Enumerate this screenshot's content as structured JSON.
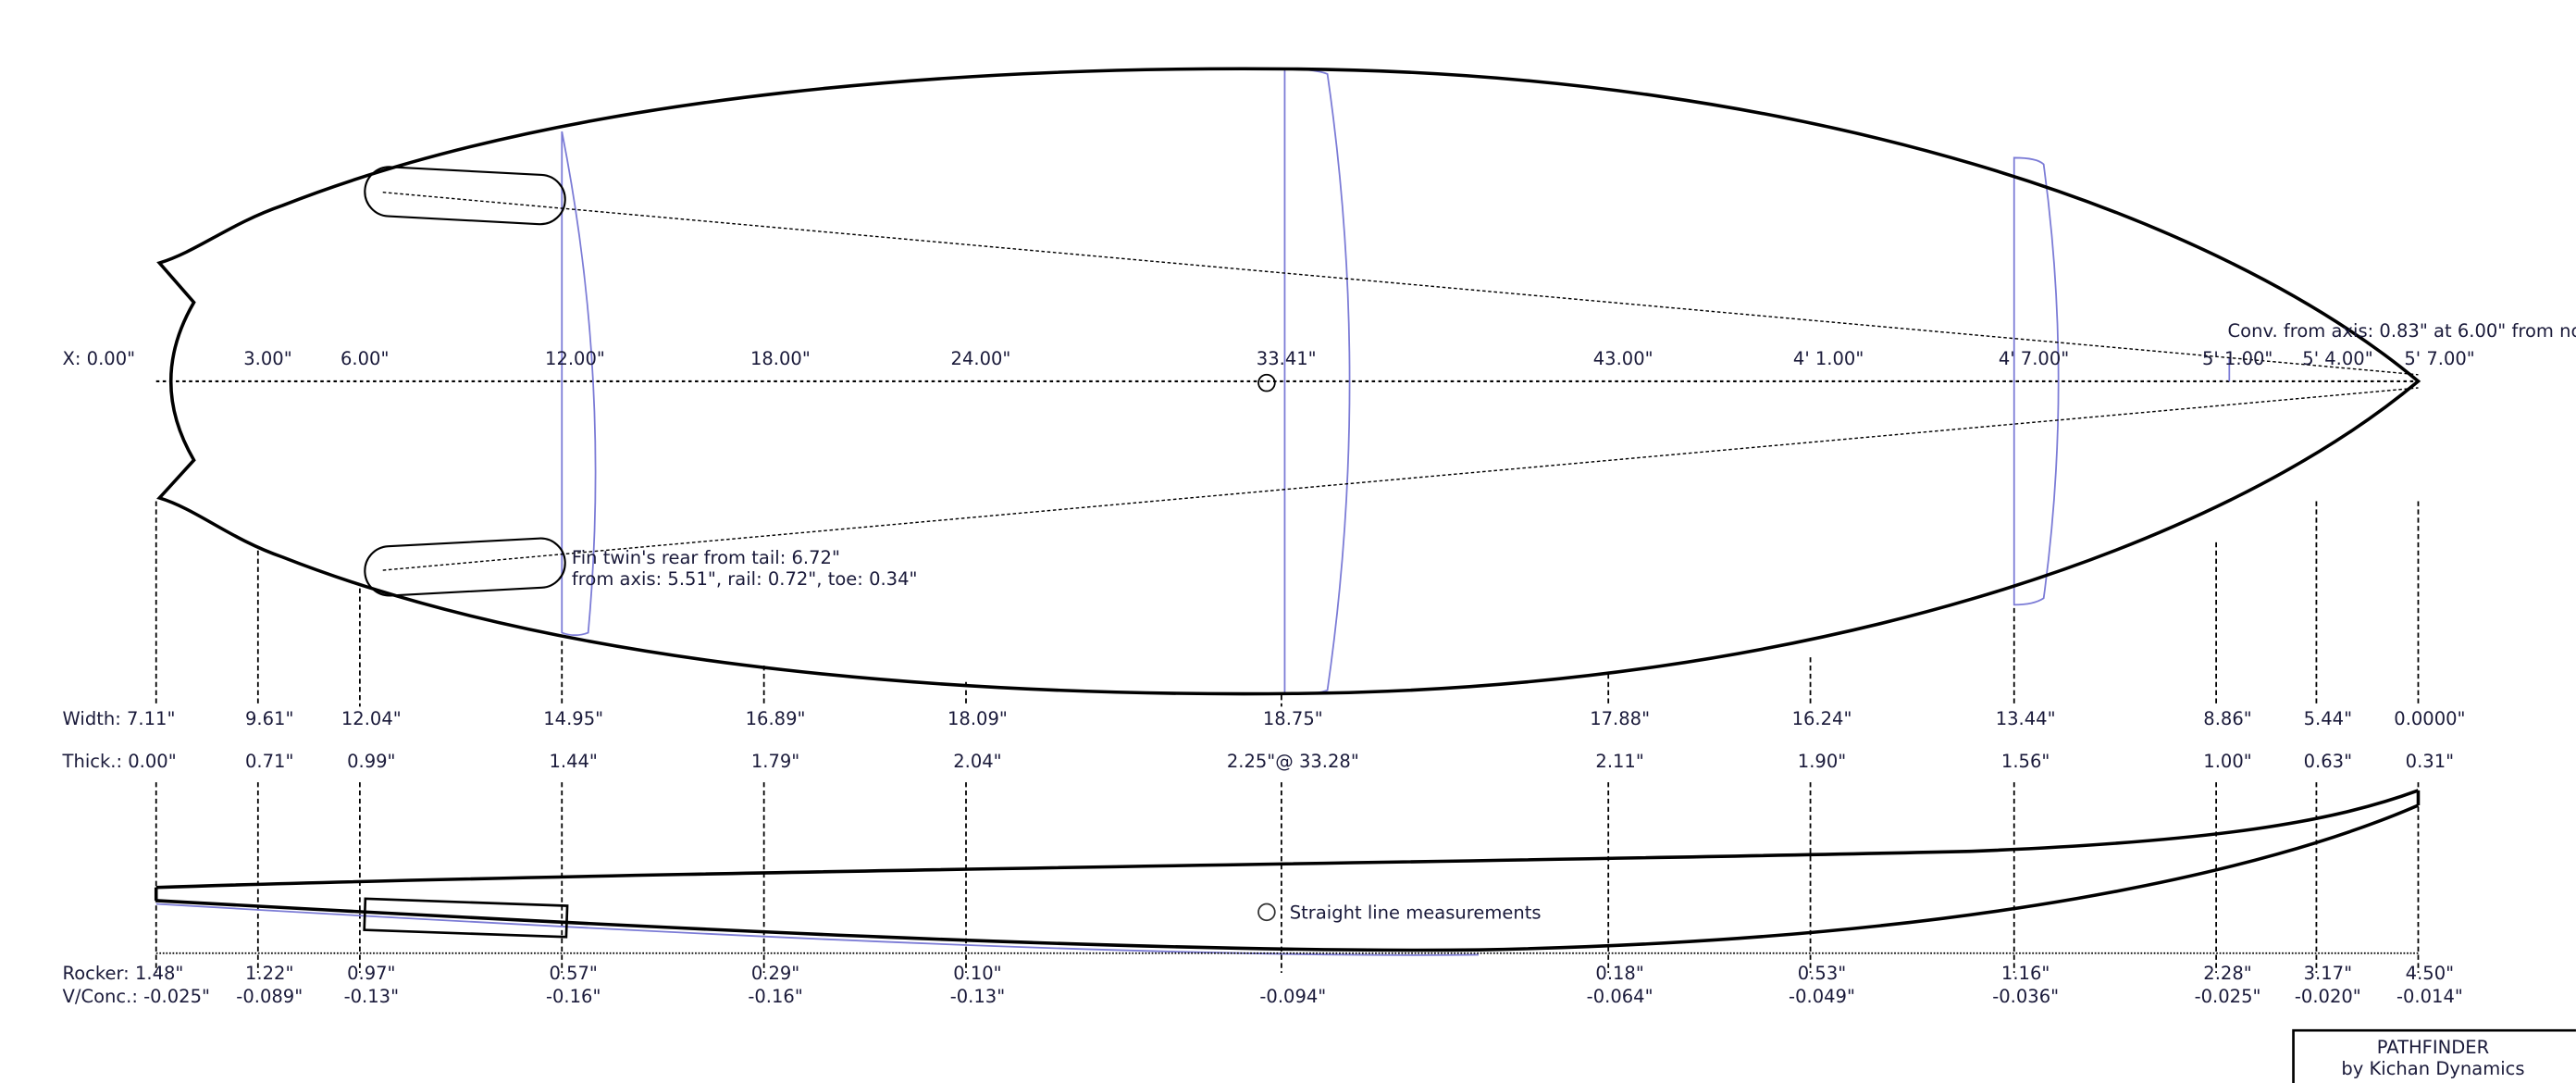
{
  "colors": {
    "outline": "#000000",
    "section": "#7b7bd6",
    "text": "#1a1a3a"
  },
  "x_labels": [
    "X: 0.00\"",
    "3.00\"",
    "6.00\"",
    "12.00\"",
    "18.00\"",
    "24.00\"",
    "33.41\"",
    "43.00\"",
    "4' 1.00\"",
    "4' 7.00\"",
    "5' 1.00\"",
    "5' 4.00\"",
    "5' 7.00\""
  ],
  "width_labels": [
    "Width: 7.11\"",
    "9.61\"",
    "12.04\"",
    "14.95\"",
    "16.89\"",
    "18.09\"",
    "18.75\"",
    "17.88\"",
    "16.24\"",
    "13.44\"",
    "8.86\"",
    "5.44\"",
    "0.0000\""
  ],
  "thick_labels": [
    "Thick.: 0.00\"",
    "0.71\"",
    "0.99\"",
    "1.44\"",
    "1.79\"",
    "2.04\"",
    "2.25\"@ 33.28\"",
    "2.11\"",
    "1.90\"",
    "1.56\"",
    "1.00\"",
    "0.63\"",
    "0.31\""
  ],
  "rocker_labels": [
    "Rocker: 1.48\"",
    "1.22\"",
    "0.97\"",
    "0.57\"",
    "0.29\"",
    "0.10\"",
    "",
    "0.18\"",
    "0.53\"",
    "1.16\"",
    "2.28\"",
    "3.17\"",
    "4.50\""
  ],
  "vconc_labels": [
    "V/Conc.: -0.025\"",
    "-0.089\"",
    "-0.13\"",
    "-0.16\"",
    "-0.16\"",
    "-0.13\"",
    "-0.094\"",
    "-0.064\"",
    "-0.049\"",
    "-0.036\"",
    "-0.025\"",
    "-0.020\"",
    "-0.014\""
  ],
  "annotations": {
    "convergence": "Conv. from axis: 0.83\" at 6.00\" from no",
    "fin_line1": "Fin twin's rear from tail: 6.72\"",
    "fin_line2": "from axis: 5.51\", rail: 0.72\", toe: 0.34\"",
    "straight_line": "Straight line measurements"
  },
  "title_block": {
    "line1": "PATHFINDER",
    "line2": "by Kichan Dynamics"
  }
}
